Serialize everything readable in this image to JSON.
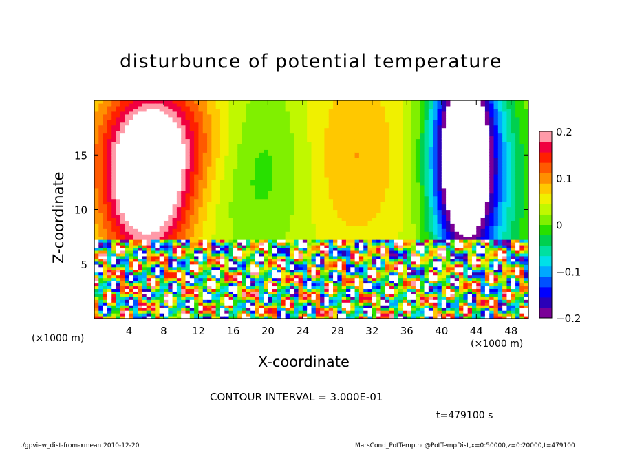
{
  "chart_data": {
    "type": "heatmap",
    "title": "disturbunce of potential temperature",
    "xlabel": "X-coordinate",
    "ylabel": "Z-coordinate",
    "x_unit_label": "(×1000 m)",
    "x_ticks": [
      4,
      8,
      12,
      16,
      20,
      24,
      28,
      32,
      36,
      40,
      44,
      48
    ],
    "y_ticks": [
      5,
      10,
      15
    ],
    "xlim": [
      0,
      50
    ],
    "ylim": [
      0,
      20
    ],
    "colorbar": {
      "range": [
        -0.2,
        0.2
      ],
      "tick_labels": [
        "0.2",
        "0.1",
        "0",
        "−0.1",
        "−0.2"
      ],
      "tick_values": [
        0.2,
        0.1,
        0,
        -0.1,
        -0.2
      ],
      "colors": [
        "#7a0097",
        "#2a00b8",
        "#0000ff",
        "#0050ff",
        "#00a8ff",
        "#00e0e8",
        "#00e0a0",
        "#00d050",
        "#28e000",
        "#80f000",
        "#c0f800",
        "#f0f000",
        "#ffc800",
        "#ff9000",
        "#ff5a00",
        "#ff2000",
        "#f00040",
        "#ff9aa8"
      ]
    },
    "annotations": [
      "CONTOUR INTERVAL = 3.000E-01",
      "t=479100 s"
    ]
  },
  "footer": {
    "left": "./gpview_dist-from-xmean  2010-12-20",
    "right": "MarsCond_PotTemp.nc@PotTempDist,x=0:50000,z=0:20000,t=479100"
  }
}
